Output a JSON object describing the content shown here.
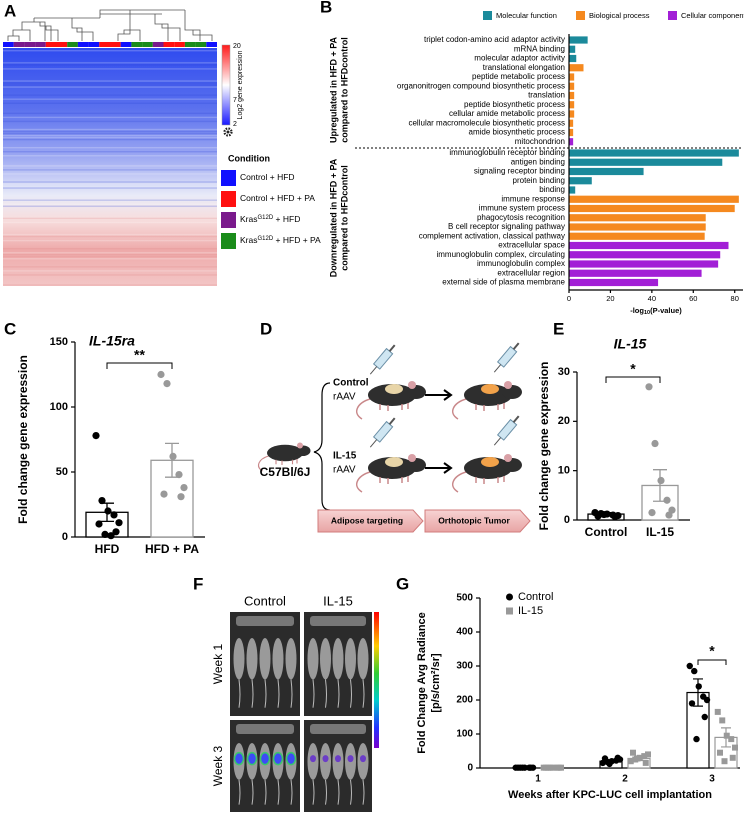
{
  "panel_labels": [
    "A",
    "B",
    "C",
    "D",
    "E",
    "F",
    "G"
  ],
  "heatmap": {
    "colorbar_label": "Log2 gene expression",
    "colorbar_ticks": [
      20,
      7,
      2
    ],
    "legend_title": "Condition",
    "conditions": [
      {
        "color": "#1010ff",
        "text": "Control + HFD"
      },
      {
        "color": "#ff1010",
        "text": "Control + HFD + PA"
      },
      {
        "color": "#7a1a8c",
        "text": "Kras",
        "sup": "G12D",
        "rest": " + HFD"
      },
      {
        "color": "#1a8c1a",
        "text": "Kras",
        "sup": "G12D",
        "rest": " + HFD + PA"
      }
    ]
  },
  "diagram": {
    "strain": "C57Bl/6J",
    "groups": [
      [
        "Control",
        "rAAV"
      ],
      [
        "IL-15",
        "rAAV"
      ]
    ],
    "steps": [
      "Adipose targeting",
      "Orthotopic Tumor"
    ]
  },
  "images": {
    "columns": [
      "Control",
      "IL-15"
    ],
    "rows": [
      "Week 1",
      "Week 3"
    ]
  },
  "chart_data": [
    {
      "type": "hbar",
      "legend": [
        {
          "name": "Molecular function",
          "color": "#1b8a9b"
        },
        {
          "name": "Biological process",
          "color": "#f5891f"
        },
        {
          "name": "Cellular component",
          "color": "#a21fd6"
        }
      ],
      "groups": [
        {
          "label": [
            "Upregulated in HFD + PA",
            "compared to HFDcontrol"
          ],
          "categories": [
            "triplet codon-amino acid adaptor activity",
            "mRNA binding",
            "molecular adaptor activity",
            "translational elongation",
            "peptide metabolic process",
            "organonitrogen compound biosynthetic process",
            "translation",
            "peptide biosynthetic process",
            "cellular amide metabolic process",
            "cellular macromolecule biosynthetic process",
            "amide biosynthetic process",
            "mitochondrion"
          ],
          "values": [
            9,
            3,
            3.5,
            7,
            2.5,
            2.5,
            2.5,
            2.5,
            2.5,
            2,
            2,
            2
          ],
          "series": [
            0,
            0,
            0,
            1,
            1,
            1,
            1,
            1,
            1,
            1,
            1,
            2
          ]
        },
        {
          "label": [
            "Downregulated in HFD + PA",
            "compared to HFDcontrol"
          ],
          "categories": [
            "immunoglobulin receptor binding",
            "antigen binding",
            "signaling receptor binding",
            "protein binding",
            "binding",
            "immune response",
            "immune system process",
            "phagocytosis recognition",
            "B cell receptor signaling pathway",
            "complement activation, classical pathway",
            "extracellular space",
            "immunoglobulin complex, circulating",
            "immunoglobulin complex",
            "extracellular region",
            "external side of plasma membrane"
          ],
          "values": [
            82,
            74,
            36,
            11,
            3,
            82,
            80,
            66,
            66,
            65.5,
            77,
            73,
            72,
            64,
            43
          ],
          "series": [
            0,
            0,
            0,
            0,
            0,
            1,
            1,
            1,
            1,
            1,
            2,
            2,
            2,
            2,
            2
          ]
        }
      ],
      "xlabel": [
        "-log",
        "10",
        "(P-value)"
      ],
      "xlim": [
        0,
        84
      ],
      "xticks": [
        0,
        20,
        40,
        60,
        80
      ]
    },
    {
      "type": "bar_scatter",
      "title": "IL-15ra",
      "ylabel": "Fold  change gene expression",
      "categories": [
        "HFD",
        "HFD + PA"
      ],
      "colors": [
        "#000000",
        "#999999"
      ],
      "values": [
        19,
        59
      ],
      "errors": [
        7,
        13
      ],
      "points": [
        [
          78,
          28,
          20,
          17,
          11,
          10,
          4,
          2,
          1
        ],
        [
          125,
          118,
          62,
          48,
          38,
          33,
          31
        ]
      ],
      "significance": "**",
      "ylim": [
        0,
        150
      ],
      "yticks": [
        0,
        50,
        100,
        150
      ]
    },
    {
      "type": "bar_scatter",
      "title": "IL-15",
      "ylabel": "Fold change gene expression",
      "categories": [
        "Control",
        "IL-15"
      ],
      "colors": [
        "#000000",
        "#999999"
      ],
      "values": [
        1.2,
        7
      ],
      "errors": [
        0.3,
        3.2
      ],
      "points": [
        [
          1.5,
          1.3,
          1.2,
          1,
          0.9,
          0.8,
          0.7,
          1.1
        ],
        [
          27,
          15.5,
          8,
          4,
          2,
          1.5,
          1
        ]
      ],
      "significance": "*",
      "ylim": [
        0,
        30
      ],
      "yticks": [
        0,
        10,
        20,
        30
      ]
    },
    {
      "type": "grouped_bar_scatter",
      "ylabel": [
        "Fold Change Avg Radiance",
        "[p/s/cm²/sr]"
      ],
      "xlabel": "Weeks after KPC-LUC cell implantation",
      "categories": [
        "1",
        "2",
        "3"
      ],
      "series": [
        {
          "name": "Control",
          "color": "#000000",
          "marker": "circle",
          "values": [
            1,
            20,
            222
          ],
          "errors": [
            0,
            4,
            40
          ],
          "points": [
            [
              1,
              1,
              1,
              1,
              1,
              1,
              1,
              1
            ],
            [
              15,
              18,
              20,
              22,
              25,
              28,
              30,
              12
            ],
            [
              300,
              285,
              240,
              210,
              200,
              190,
              150,
              85
            ]
          ]
        },
        {
          "name": "IL-15",
          "color": "#999999",
          "marker": "square",
          "values": [
            1,
            28,
            90
          ],
          "errors": [
            0,
            6,
            28
          ],
          "points": [
            [
              1,
              1,
              1,
              1,
              1,
              1,
              1,
              1
            ],
            [
              20,
              25,
              30,
              35,
              40,
              45,
              15,
              28
            ],
            [
              165,
              140,
              95,
              85,
              60,
              45,
              30,
              20
            ]
          ]
        }
      ],
      "significance": "*",
      "ylim": [
        0,
        500
      ],
      "yticks": [
        0,
        100,
        200,
        300,
        400,
        500
      ]
    }
  ]
}
